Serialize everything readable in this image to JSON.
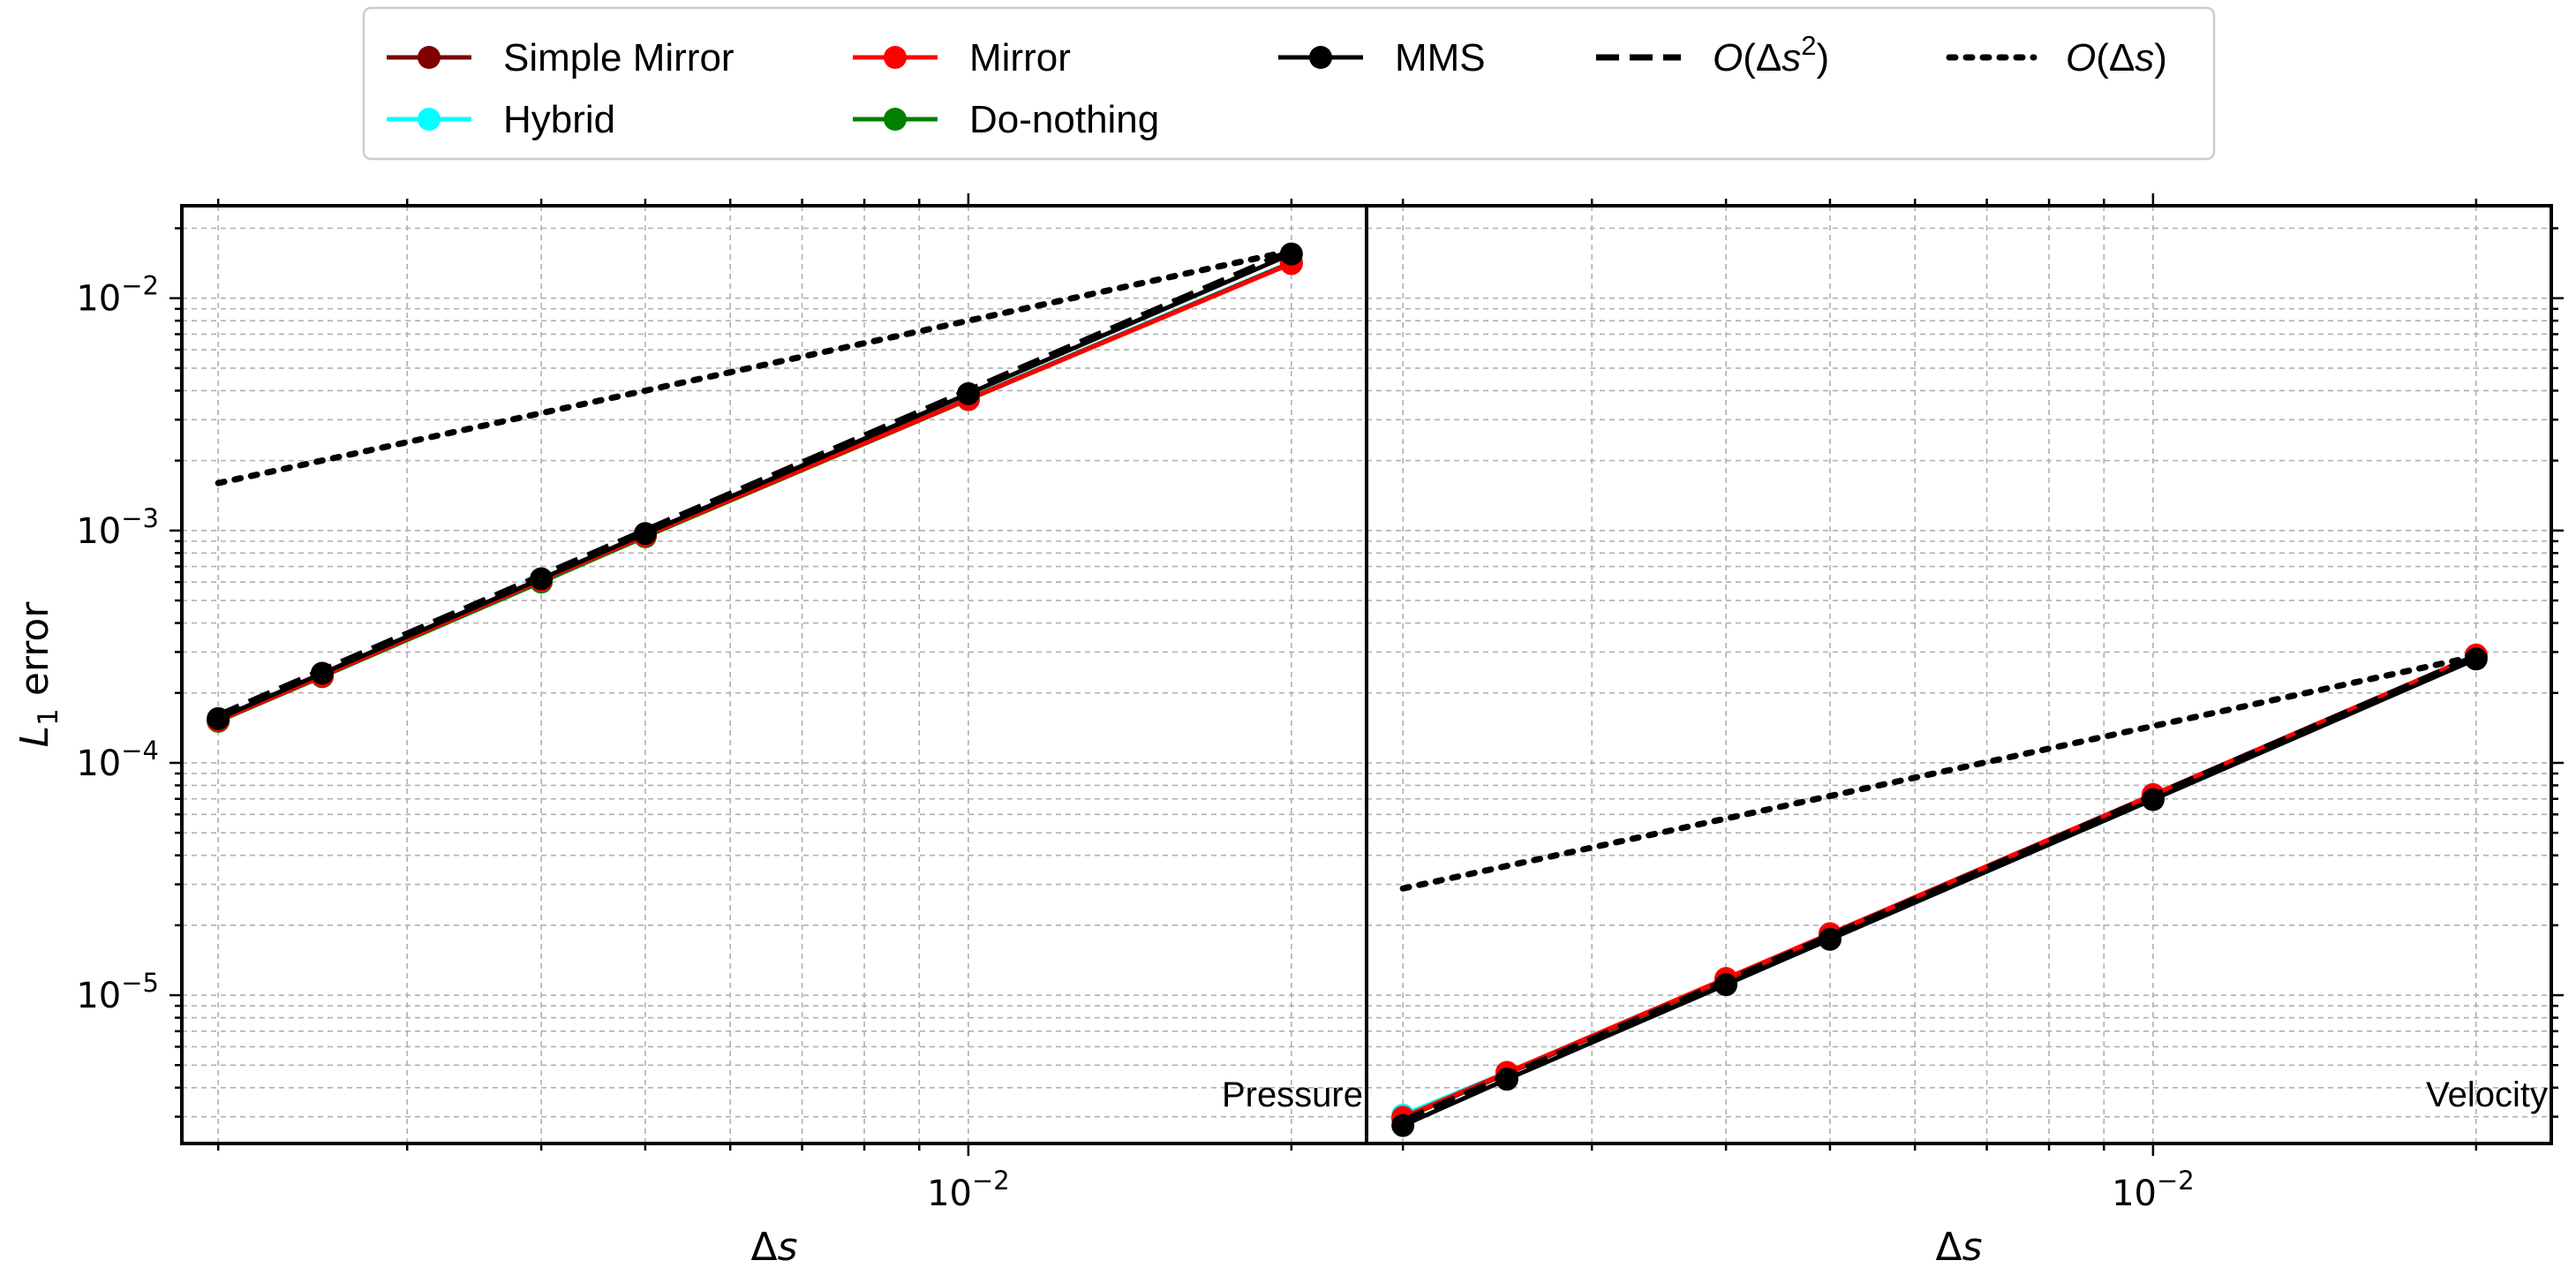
{
  "chart_data": {
    "type": "line",
    "x_scale": "log",
    "y_scale": "log",
    "grid": true,
    "legend_placement": "top-center",
    "xlabel": "Δs",
    "ylabel_main": "L",
    "ylabel_sub": "1",
    "ylabel_rest": " error",
    "xlim": [
      0.00185,
      0.0235
    ],
    "ylim": [
      2.3e-06,
      0.025
    ],
    "x_ticks": [
      {
        "value": 0.01,
        "base": "10",
        "exp": "−2"
      }
    ],
    "y_ticks": [
      {
        "value": 1e-05,
        "base": "10",
        "exp": "−5"
      },
      {
        "value": 0.0001,
        "base": "10",
        "exp": "−4"
      },
      {
        "value": 0.001,
        "base": "10",
        "exp": "−3"
      },
      {
        "value": 0.01,
        "base": "10",
        "exp": "−2"
      }
    ],
    "x": [
      0.002,
      0.0025,
      0.004,
      0.005,
      0.01,
      0.02
    ],
    "legend": [
      {
        "name": "Simple Mirror",
        "color": "#800000",
        "style": "solid",
        "marker": true
      },
      {
        "name": "Mirror",
        "color": "#ff0000",
        "style": "solid",
        "marker": true
      },
      {
        "name": "MMS",
        "color": "#000000",
        "style": "solid",
        "marker": true
      },
      {
        "name": "O(Δs²)",
        "math_pre": "O(Δ",
        "math_var": "s",
        "math_sup": "2",
        "math_post": ")",
        "color": "#000000",
        "style": "dashed",
        "marker": false
      },
      {
        "name": "O(Δs)",
        "math_pre": "O(Δ",
        "math_var": "s",
        "math_sup": "",
        "math_post": ")",
        "color": "#000000",
        "style": "dotted",
        "marker": false
      },
      {
        "name": "Hybrid",
        "color": "#00ffff",
        "style": "solid",
        "marker": true
      },
      {
        "name": "Do-nothing",
        "color": "#008000",
        "style": "solid",
        "marker": true
      }
    ],
    "panels": [
      {
        "label": "Pressure",
        "series": [
          {
            "name": "Do-nothing",
            "color": "#008000",
            "style": "solid",
            "marker": true,
            "values": [
              0.000151,
              0.000235,
              0.0006,
              0.00094,
              0.00366,
              0.0142
            ]
          },
          {
            "name": "Hybrid",
            "color": "#00ffff",
            "style": "solid",
            "marker": true,
            "values": [
              0.000153,
              0.000238,
              0.00061,
              0.00095,
              0.0037,
              0.0143
            ]
          },
          {
            "name": "Simple Mirror",
            "color": "#800000",
            "style": "solid",
            "marker": true,
            "values": [
              0.000152,
              0.000237,
              0.00061,
              0.00095,
              0.00368,
              0.0142
            ]
          },
          {
            "name": "Mirror",
            "color": "#ff0000",
            "style": "solid",
            "marker": true,
            "values": [
              0.000152,
              0.000237,
              0.00061,
              0.00095,
              0.00367,
              0.0141
            ]
          },
          {
            "name": "O(Δs²)",
            "color": "#000000",
            "style": "dashed",
            "marker": false,
            "values": [
              0.00016,
              0.00025,
              0.00064,
              0.001,
              0.004,
              0.016
            ]
          },
          {
            "name": "MMS",
            "color": "#000000",
            "style": "solid",
            "marker": true,
            "values": [
              0.000155,
              0.000243,
              0.00062,
              0.00097,
              0.00388,
              0.0155
            ]
          },
          {
            "name": "O(Δs)",
            "color": "#000000",
            "style": "dotted",
            "marker": false,
            "values": [
              0.0016,
              0.002,
              0.0032,
              0.004,
              0.008,
              0.016
            ]
          }
        ]
      },
      {
        "label": "Velocity",
        "series": [
          {
            "name": "Do-nothing",
            "color": "#008000",
            "style": "solid",
            "marker": true,
            "values": [
              2.95e-06,
              4.6e-06,
              1.16e-05,
              1.81e-05,
              7.15e-05,
              0.000287
            ]
          },
          {
            "name": "Hybrid",
            "color": "#00ffff",
            "style": "solid",
            "marker": true,
            "values": [
              3.05e-06,
              4.65e-06,
              1.17e-05,
              1.82e-05,
              7.2e-05,
              0.000288
            ]
          },
          {
            "name": "Simple Mirror",
            "color": "#800000",
            "style": "solid",
            "marker": true,
            "values": [
              2.95e-06,
              4.6e-06,
              1.17e-05,
              1.82e-05,
              7.25e-05,
              0.000289
            ]
          },
          {
            "name": "Mirror",
            "color": "#ff0000",
            "style": "solid",
            "marker": true,
            "values": [
              2.98e-06,
              4.65e-06,
              1.18e-05,
              1.84e-05,
              7.3e-05,
              0.000291
            ]
          },
          {
            "name": "O(Δs²)",
            "color": "#000000",
            "style": "dashed",
            "marker": false,
            "values": [
              2.88e-06,
              4.5e-06,
              1.15e-05,
              1.8e-05,
              7.2e-05,
              0.000288
            ]
          },
          {
            "name": "MMS",
            "color": "#000000",
            "style": "solid",
            "marker": true,
            "values": [
              2.75e-06,
              4.35e-06,
              1.11e-05,
              1.74e-05,
              6.95e-05,
              0.00028
            ]
          },
          {
            "name": "O(Δs)",
            "color": "#000000",
            "style": "dotted",
            "marker": false,
            "values": [
              2.88e-05,
              3.6e-05,
              5.76e-05,
              7.2e-05,
              0.000144,
              0.000288
            ]
          }
        ]
      }
    ]
  }
}
